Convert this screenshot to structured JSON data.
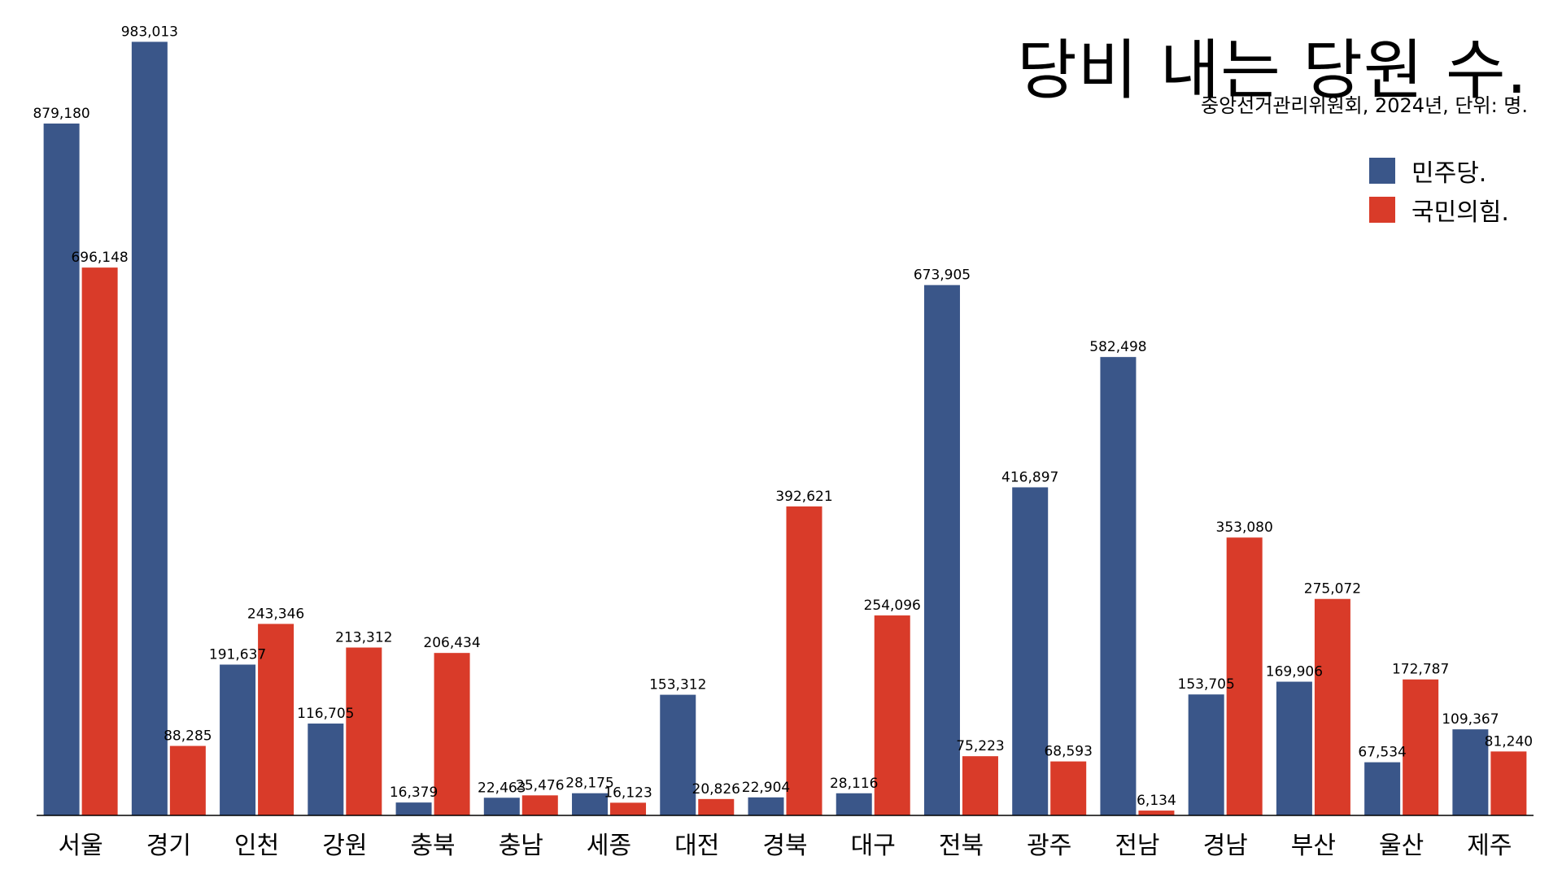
{
  "chart_data": {
    "type": "bar",
    "title": "당비 내는 당원 수.",
    "subtitle": "중앙선거관리위원회, 2024년, 단위: 명.",
    "xlabel": "",
    "ylabel": "",
    "ylim": [
      0,
      1000000
    ],
    "grid": false,
    "legend_position": "top-right",
    "categories": [
      "서울",
      "경기",
      "인천",
      "강원",
      "충북",
      "충남",
      "세종",
      "대전",
      "경북",
      "대구",
      "전북",
      "광주",
      "전남",
      "경남",
      "부산",
      "울산",
      "제주"
    ],
    "series": [
      {
        "name": "민주당.",
        "color": "#3a5689",
        "values": [
          879180,
          983013,
          191637,
          116705,
          16379,
          22463,
          28175,
          153312,
          22904,
          28116,
          673905,
          416897,
          582498,
          153705,
          169906,
          67534,
          109367
        ],
        "labels": [
          "879,180",
          "983,013",
          "191,637",
          "116,705",
          "16,379",
          "22,463",
          "28,175",
          "153,312",
          "22,904",
          "28,116",
          "673,905",
          "416,897",
          "582,498",
          "153,705",
          "169,906",
          "67,534",
          "109,367"
        ]
      },
      {
        "name": "국민의힘.",
        "color": "#d93b29",
        "values": [
          696148,
          88285,
          243346,
          213312,
          206434,
          25476,
          16123,
          20826,
          392621,
          254096,
          75223,
          68593,
          6134,
          353080,
          275072,
          172787,
          81240
        ],
        "labels": [
          "696,148",
          "88,285",
          "243,346",
          "213,312",
          "206,434",
          "25,476",
          "16,123",
          "20,826",
          "392,621",
          "254,096",
          "75,223",
          "68,593",
          "6,134",
          "353,080",
          "275,072",
          "172,787",
          "81,240"
        ]
      }
    ]
  }
}
